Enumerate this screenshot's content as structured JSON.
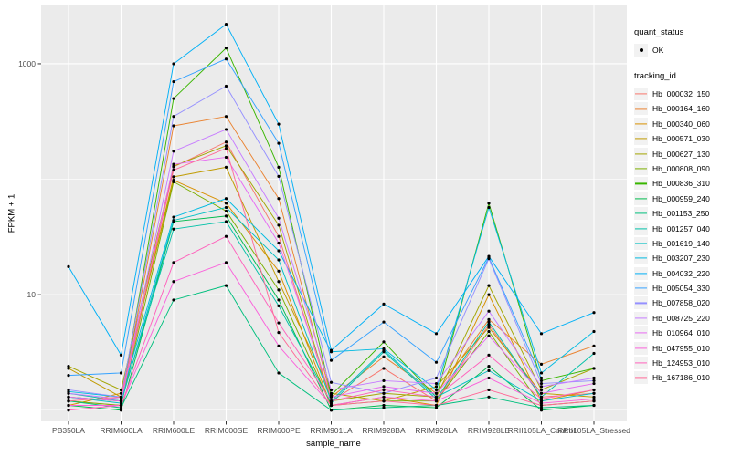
{
  "y_axis": {
    "label": "FPKM + 1",
    "tick_labels": [
      "1000",
      "10"
    ],
    "tick_values": [
      1000,
      10
    ]
  },
  "x_axis": {
    "label": "sample_name",
    "categories": [
      "PB350LA",
      "RRIM600LA",
      "RRIM600LE",
      "RRIM600SE",
      "RRIM600PE",
      "RRIM901LA",
      "RRIM928BA",
      "RRIM928LA",
      "RRIM928LE",
      "RRII105LA_Control",
      "RRII105LA_Stressed"
    ]
  },
  "legend": {
    "quant_status": {
      "title": "quant_status",
      "items": [
        {
          "label": "OK",
          "marker": "point",
          "color": "#000000"
        }
      ]
    },
    "tracking_id": {
      "title": "tracking_id"
    }
  },
  "colors": {
    "panel_bg": "#EBEBEB",
    "grid": "#FFFFFF",
    "tick": "#333333",
    "tick_label": "#4D4D4D",
    "legend_key_bg": "#F2F2F2",
    "point": "#000000"
  },
  "chart_data": {
    "type": "line",
    "yscale": "log10",
    "ylim": [
      0.8,
      3200
    ],
    "yticks": [
      10,
      1000
    ],
    "gridlines_major_y": [
      10,
      1000
    ],
    "gridlines_minor_y": [
      1,
      100
    ],
    "grid": true,
    "legend_position": "right",
    "x": [
      "PB350LA",
      "RRIM600LA",
      "RRIM600LE",
      "RRIM600SE",
      "RRIM600PE",
      "RRIM901LA",
      "RRIM928BA",
      "RRIM928LA",
      "RRIM928LE",
      "RRII105LA_Control",
      "RRII105LA_Stressed"
    ],
    "series": [
      {
        "name": "Hb_000032_150",
        "color": "#F8766D",
        "values": [
          1.2,
          1.1,
          128,
          210,
          32,
          1.2,
          2.3,
          1.2,
          5.5,
          1.3,
          1.4
        ]
      },
      {
        "name": "Hb_000164_160",
        "color": "#EA8331",
        "values": [
          1.3,
          1.2,
          290,
          350,
          68,
          1.3,
          2.9,
          1.4,
          6.1,
          2.5,
          3.6
        ]
      },
      {
        "name": "Hb_000340_060",
        "color": "#D89000",
        "values": [
          1.1,
          1.4,
          98,
          62,
          16,
          1.1,
          1.3,
          1.1,
          10,
          1.2,
          1.5
        ]
      },
      {
        "name": "Hb_000571_030",
        "color": "#C09B00",
        "values": [
          2.3,
          1.3,
          105,
          127,
          13,
          1.4,
          1.2,
          1.6,
          5.2,
          1.4,
          1.3
        ]
      },
      {
        "name": "Hb_000627_130",
        "color": "#A3A500",
        "values": [
          2.4,
          1.5,
          130,
          195,
          40,
          1.2,
          1.4,
          1.3,
          12,
          1.5,
          2.3
        ]
      },
      {
        "name": "Hb_000808_090",
        "color": "#7CAE00",
        "values": [
          1.2,
          1.1,
          95,
          53,
          11,
          1.1,
          1.2,
          1.2,
          4.8,
          1.1,
          1.2
        ]
      },
      {
        "name": "Hb_000836_310",
        "color": "#39B600",
        "values": [
          1.3,
          1.2,
          500,
          1370,
          127,
          1.35,
          3.9,
          1.3,
          62,
          1.8,
          2.3
        ]
      },
      {
        "name": "Hb_000959_240",
        "color": "#00BB4E",
        "values": [
          1.1,
          1.0,
          43,
          48,
          9,
          1.0,
          1.1,
          1.05,
          2.4,
          1.0,
          1.1
        ]
      },
      {
        "name": "Hb_001153_250",
        "color": "#00BF7D",
        "values": [
          1.2,
          1.05,
          9,
          12,
          2.1,
          1.0,
          1.05,
          1.1,
          1.3,
          1.05,
          1.1
        ]
      },
      {
        "name": "Hb_001257_040",
        "color": "#00C1A7",
        "values": [
          1.4,
          1.2,
          37,
          43,
          8,
          1.15,
          3.2,
          1.25,
          5.8,
          1.3,
          3.1
        ]
      },
      {
        "name": "Hb_001619_140",
        "color": "#00BFC4",
        "values": [
          1.3,
          1.15,
          44,
          57,
          20,
          1.2,
          3.3,
          1.3,
          2.2,
          1.2,
          1.4
        ]
      },
      {
        "name": "Hb_003207_230",
        "color": "#00BAE0",
        "values": [
          1.45,
          1.3,
          47,
          68,
          24,
          3.2,
          3.4,
          1.5,
          57,
          2.1,
          4.8
        ]
      },
      {
        "name": "Hb_004032_220",
        "color": "#00B0F6",
        "values": [
          17.5,
          3.0,
          1000,
          2200,
          300,
          3.3,
          8.3,
          4.6,
          21.5,
          4.6,
          7.0
        ]
      },
      {
        "name": "Hb_005054_330",
        "color": "#35A2FF",
        "values": [
          2.0,
          2.1,
          700,
          1100,
          205,
          2.7,
          5.8,
          2.6,
          21,
          1.9,
          1.9
        ]
      },
      {
        "name": "Hb_007858_020",
        "color": "#9590FF",
        "values": [
          1.5,
          1.3,
          350,
          640,
          106,
          1.74,
          1.4,
          1.9,
          20.5,
          1.7,
          1.8
        ]
      },
      {
        "name": "Hb_008725_220",
        "color": "#C77CFF",
        "values": [
          1.4,
          1.25,
          175,
          270,
          46,
          1.5,
          1.8,
          1.7,
          7.2,
          1.6,
          1.9
        ]
      },
      {
        "name": "Hb_010964_010",
        "color": "#E76BF3",
        "values": [
          1.3,
          1.2,
          135,
          155,
          28,
          1.3,
          1.6,
          1.4,
          4.4,
          1.4,
          1.7
        ]
      },
      {
        "name": "Hb_047955_010",
        "color": "#FA62DB",
        "values": [
          1.1,
          1.1,
          13,
          19,
          3.6,
          1.1,
          1.3,
          1.2,
          1.9,
          1.15,
          1.25
        ]
      },
      {
        "name": "Hb_124953_010",
        "color": "#FF62BC",
        "values": [
          1.0,
          1.1,
          19,
          32,
          5.7,
          1.2,
          1.5,
          1.3,
          3.0,
          1.25,
          1.5
        ]
      },
      {
        "name": "Hb_167186_010",
        "color": "#FF6A98",
        "values": [
          1.2,
          1.3,
          120,
          185,
          4.7,
          1.1,
          1.2,
          1.1,
          1.5,
          1.1,
          1.2
        ]
      }
    ]
  }
}
